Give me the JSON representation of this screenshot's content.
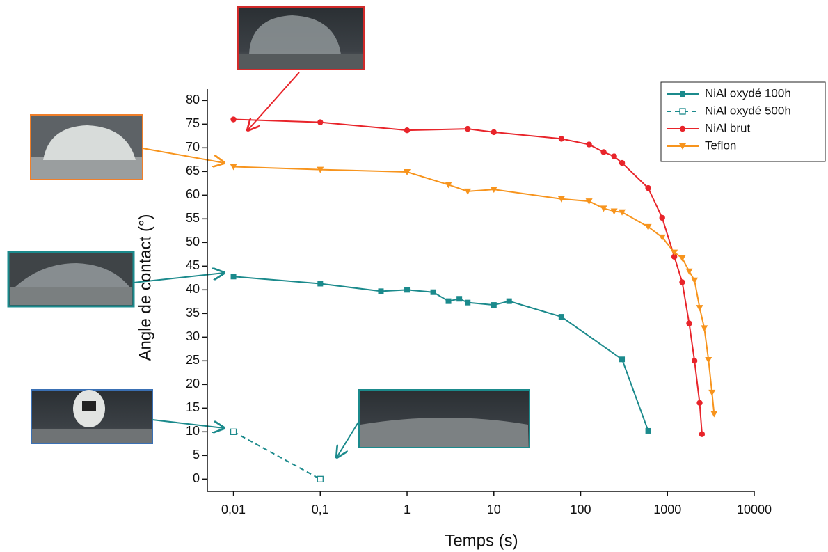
{
  "chart_data": {
    "type": "line",
    "x_label": "Temps (s)",
    "y_label": "Angle de contact (°)",
    "xscale": "log",
    "legend": "upper right",
    "xlim": [
      0.005,
      10000
    ],
    "ylim": [
      -2.6,
      82.4
    ],
    "xticks": [
      {
        "value": 0.01,
        "label": "0,01"
      },
      {
        "value": 0.1,
        "label": "0,1"
      },
      1,
      10,
      100,
      1000,
      10000
    ],
    "yticks": [
      0,
      5,
      10,
      15,
      20,
      25,
      30,
      35,
      40,
      45,
      50,
      55,
      60,
      65,
      70,
      75,
      80
    ],
    "series": [
      {
        "name": "NiAl oxydé 100h",
        "color": "#1b8a8c",
        "marker": "square",
        "linestyle": "solid",
        "x": [
          0.01,
          0.1,
          0.5,
          1,
          2,
          3,
          4,
          5,
          10,
          15,
          60,
          300,
          600
        ],
        "values": [
          42.8,
          41.3,
          39.7,
          40,
          39.5,
          37.6,
          38.1,
          37.3,
          36.8,
          37.6,
          34.3,
          25.3,
          10.2
        ]
      },
      {
        "name": "NiAl oxydé 500h",
        "color": "#1b8a8c",
        "marker": "square-open",
        "linestyle": "dashed",
        "x": [
          0.01,
          0.1
        ],
        "values": [
          10,
          0
        ]
      },
      {
        "name": "NiAl brut",
        "color": "#e8242a",
        "marker": "circle",
        "linestyle": "solid",
        "x": [
          0.01,
          0.1,
          1,
          5,
          10,
          60,
          125,
          184,
          243,
          300,
          600,
          870,
          1200,
          1480,
          1780,
          2050,
          2350,
          2500
        ],
        "values": [
          76,
          75.4,
          73.7,
          74,
          73.3,
          71.9,
          70.7,
          69.1,
          68.2,
          66.8,
          61.5,
          55.2,
          47,
          41.6,
          32.9,
          25,
          16.1,
          9.5
        ]
      },
      {
        "name": "Teflon",
        "color": "#f7941d",
        "marker": "triangle-down",
        "linestyle": "solid",
        "x": [
          0.01,
          0.1,
          1,
          3,
          5,
          10,
          60,
          125,
          184,
          243,
          300,
          600,
          870,
          1200,
          1480,
          1780,
          2050,
          2350,
          2660,
          2970,
          3260,
          3450
        ],
        "values": [
          66,
          65.4,
          64.9,
          62.2,
          60.8,
          61.2,
          59.2,
          58.7,
          57.2,
          56.6,
          56.4,
          53.3,
          51.1,
          47.9,
          46.7,
          43.9,
          42,
          36.2,
          31.9,
          25.2,
          18.3,
          13.8
        ]
      }
    ]
  }
}
